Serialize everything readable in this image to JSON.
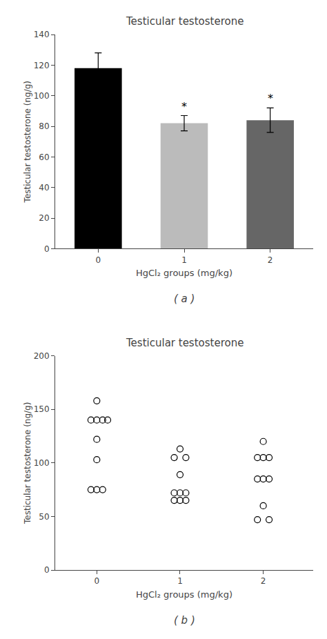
{
  "chart_data": [
    {
      "type": "bar",
      "title": "Testicular testosterone",
      "xlabel": "HgCl₂ groups (mg/kg)",
      "ylabel": "Testicular testosterone (ng/g)",
      "categories": [
        "0",
        "1",
        "2"
      ],
      "values": [
        118,
        82,
        84
      ],
      "errors": [
        10,
        5,
        8
      ],
      "colors": [
        "#000000",
        "#bbbbbb",
        "#666666"
      ],
      "ylim": [
        0,
        140
      ],
      "yticks": [
        0,
        20,
        40,
        60,
        80,
        100,
        120,
        140
      ],
      "grid": false,
      "annotations": [
        {
          "text": "*",
          "category": 1
        },
        {
          "text": "*",
          "category": 2
        },
        {
          "text": "( a )"
        }
      ]
    },
    {
      "type": "scatter",
      "title": "Testicular testosterone",
      "xlabel": "HgCl₂ groups (mg/kg)",
      "ylabel": "Testicular testosterone (ng/g)",
      "color": "#000000",
      "marker": "circle-open",
      "grid": false,
      "xlim": [
        -0.5,
        2.6
      ],
      "xticks": [
        0,
        1,
        2
      ],
      "ylim": [
        0,
        200
      ],
      "yticks": [
        0,
        50,
        100,
        150,
        200
      ],
      "series": [
        {
          "x": [
            0.0,
            -0.07,
            0.0,
            0.07,
            0.13,
            0.0,
            0.0,
            -0.07,
            0.0,
            0.07
          ],
          "values": [
            158,
            140,
            140,
            140,
            140,
            122,
            103,
            75,
            75,
            75
          ]
        },
        {
          "x": [
            1.0,
            0.93,
            1.07,
            1.0,
            0.93,
            1.0,
            1.07,
            0.93,
            1.0,
            1.07
          ],
          "values": [
            113,
            105,
            105,
            89,
            72,
            72,
            72,
            65,
            65,
            65
          ]
        },
        {
          "x": [
            2.0,
            1.93,
            2.0,
            2.07,
            1.93,
            2.0,
            2.07,
            2.0,
            1.93,
            2.07
          ],
          "values": [
            120,
            105,
            105,
            105,
            85,
            85,
            85,
            60,
            47,
            47
          ]
        }
      ],
      "annotations": [
        {
          "text": "( b )"
        }
      ]
    }
  ]
}
